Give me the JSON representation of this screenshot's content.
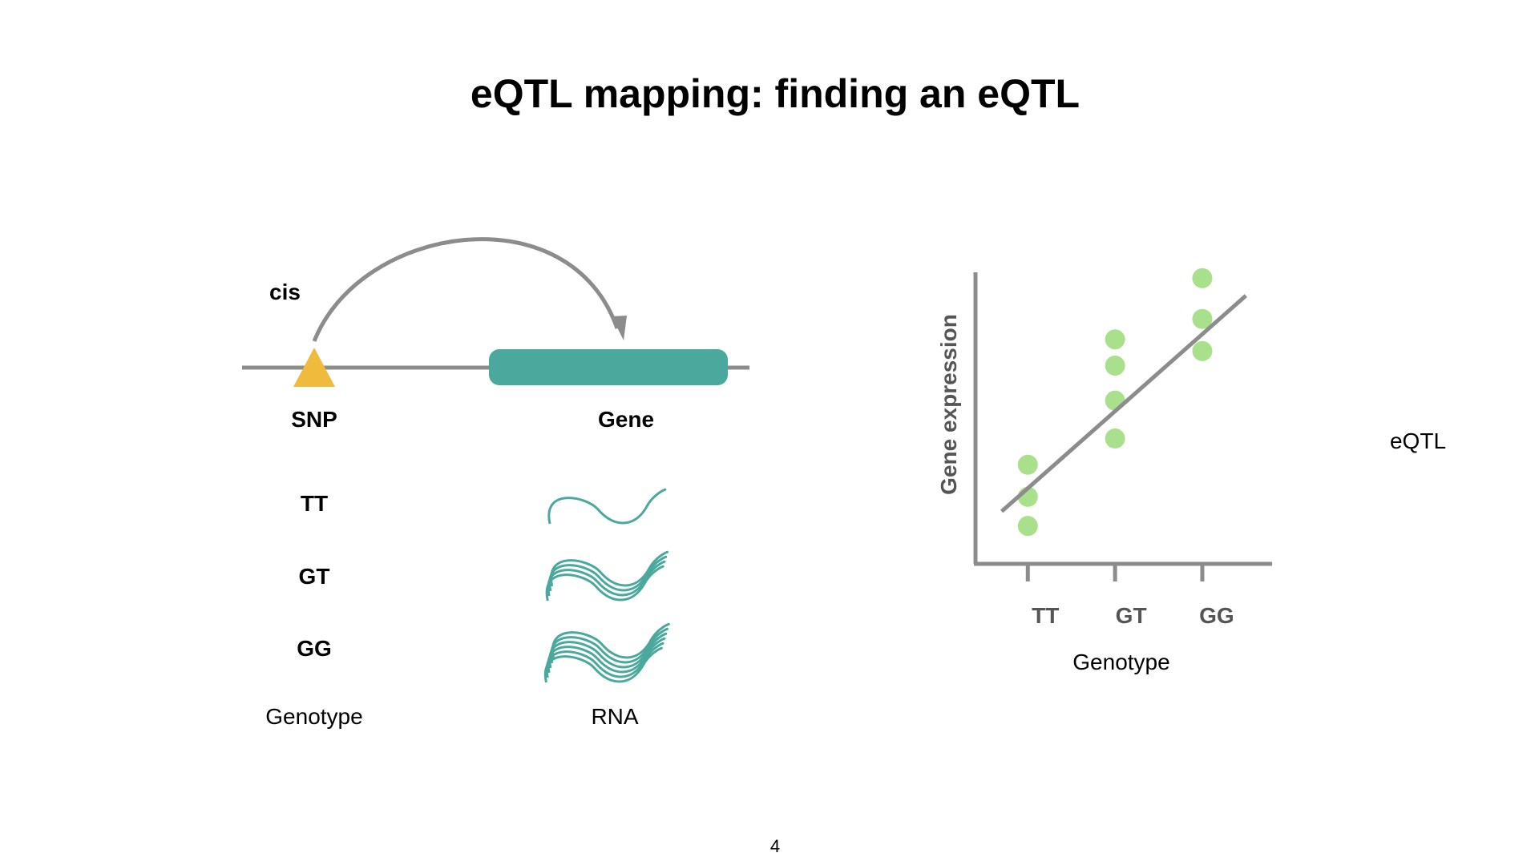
{
  "slide": {
    "title": "eQTL mapping: finding an eQTL",
    "page_number": "4"
  },
  "colors": {
    "snp": "#f0bb3c",
    "gene": "#4aa89d",
    "rna": "#4aa89d",
    "line": "#8c8c8c",
    "dots": "#a8e08c",
    "axis": "#8c8c8c",
    "axis_text": "#555555"
  },
  "diagram": {
    "cis_label": "cis",
    "snp_label": "SNP",
    "gene_label": "Gene",
    "genotypes": [
      {
        "label": "TT",
        "rna_copies": 1
      },
      {
        "label": "GT",
        "rna_copies": 4
      },
      {
        "label": "GG",
        "rna_copies": 6
      }
    ],
    "genotype_column_label": "Genotype",
    "rna_column_label": "RNA"
  },
  "chart_data": {
    "type": "scatter",
    "xlabel": "Genotype",
    "ylabel": "Gene expression",
    "categories": [
      "TT",
      "GT",
      "GG"
    ],
    "points": [
      {
        "x": "TT",
        "y": 1.3
      },
      {
        "x": "TT",
        "y": 2.3
      },
      {
        "x": "TT",
        "y": 3.4
      },
      {
        "x": "GT",
        "y": 4.3
      },
      {
        "x": "GT",
        "y": 5.6
      },
      {
        "x": "GT",
        "y": 6.8
      },
      {
        "x": "GT",
        "y": 7.7
      },
      {
        "x": "GG",
        "y": 7.3
      },
      {
        "x": "GG",
        "y": 8.4
      },
      {
        "x": "GG",
        "y": 9.8
      }
    ],
    "trend_line": {
      "from": {
        "x": -0.3,
        "y": 1.8
      },
      "to": {
        "x": 2.5,
        "y": 9.2
      }
    },
    "ylim": [
      0,
      10
    ],
    "xlim": [
      -0.6,
      2.8
    ],
    "annotation": "eQTL",
    "grid": false
  }
}
